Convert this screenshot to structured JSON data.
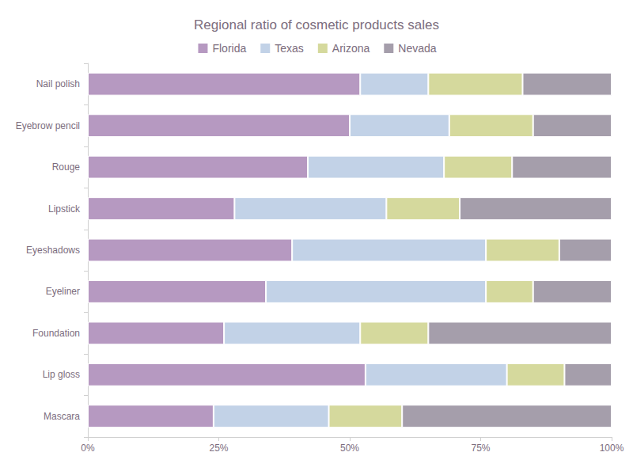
{
  "chart_data": {
    "type": "bar",
    "title": "Regional ratio of cosmetic products sales",
    "orientation": "horizontal",
    "stacked": true,
    "legend": "top",
    "grid": false,
    "categories": [
      "Nail polish",
      "Eyebrow pencil",
      "Rouge",
      "Lipstick",
      "Eyeshadows",
      "Eyeliner",
      "Foundation",
      "Lip gloss",
      "Mascara"
    ],
    "series": [
      {
        "name": "Florida",
        "color": "#b699c1",
        "values": [
          52,
          50,
          42,
          28,
          39,
          34,
          26,
          53,
          24
        ]
      },
      {
        "name": "Texas",
        "color": "#c2d2e7",
        "values": [
          13,
          19,
          26,
          29,
          37,
          42,
          26,
          27,
          22
        ]
      },
      {
        "name": "Arizona",
        "color": "#d5d99d",
        "values": [
          18,
          16,
          13,
          14,
          14,
          9,
          13,
          11,
          14
        ]
      },
      {
        "name": "Nevada",
        "color": "#a59eab",
        "values": [
          17,
          15,
          19,
          29,
          10,
          15,
          35,
          9,
          40
        ]
      }
    ],
    "xlim": [
      0,
      100
    ],
    "xticks": [
      {
        "value": 0,
        "label": "0%"
      },
      {
        "value": 25,
        "label": "25%"
      },
      {
        "value": 50,
        "label": "50%"
      },
      {
        "value": 75,
        "label": "75%"
      },
      {
        "value": 100,
        "label": "100%"
      }
    ]
  }
}
